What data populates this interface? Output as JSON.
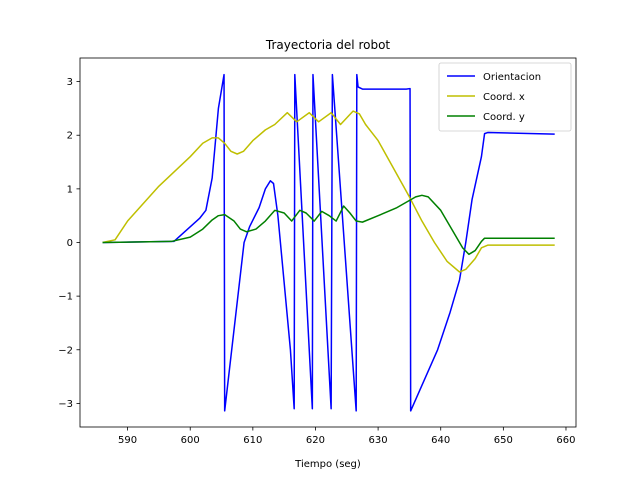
{
  "chart_data": {
    "type": "line",
    "title": "Trayectoria del robot",
    "xlabel": "Tiempo (seg)",
    "ylabel": "",
    "xlim": [
      582.4,
      661.6
    ],
    "ylim": [
      -3.44,
      3.44
    ],
    "xticks": [
      590,
      600,
      610,
      620,
      630,
      640,
      650,
      660
    ],
    "yticks": [
      -3,
      -2,
      -1,
      0,
      1,
      2,
      3
    ],
    "grid": false,
    "legend_position": "upper right",
    "series": [
      {
        "name": "Orientacion",
        "color": "#0000ff",
        "points": [
          [
            586,
            0.0
          ],
          [
            597.4,
            0.02
          ],
          [
            601.5,
            0.45
          ],
          [
            602.5,
            0.6
          ],
          [
            603.5,
            1.2
          ],
          [
            604.5,
            2.5
          ],
          [
            605.4,
            3.13
          ],
          [
            605.5,
            -3.14
          ],
          [
            608.6,
            0.0
          ],
          [
            609.5,
            0.3
          ],
          [
            611.0,
            0.65
          ],
          [
            612.0,
            1.0
          ],
          [
            612.8,
            1.15
          ],
          [
            613.3,
            1.1
          ],
          [
            614.0,
            0.5
          ],
          [
            616.0,
            -2.0
          ],
          [
            616.6,
            -3.1
          ],
          [
            616.7,
            3.13
          ],
          [
            619.5,
            -3.1
          ],
          [
            619.6,
            3.13
          ],
          [
            622.5,
            -3.1
          ],
          [
            622.7,
            3.13
          ],
          [
            626.5,
            -3.14
          ],
          [
            626.6,
            3.13
          ],
          [
            626.8,
            2.9
          ],
          [
            627.5,
            2.86
          ],
          [
            634.5,
            2.86
          ],
          [
            635.1,
            2.87
          ],
          [
            635.2,
            -3.14
          ],
          [
            639.5,
            -2.0
          ],
          [
            641.5,
            -1.3
          ],
          [
            643.0,
            -0.7
          ],
          [
            644.0,
            0.0
          ],
          [
            645.0,
            0.8
          ],
          [
            646.5,
            1.6
          ],
          [
            647.0,
            2.03
          ],
          [
            647.5,
            2.05
          ],
          [
            658.2,
            2.02
          ]
        ]
      },
      {
        "name": "Coord. x",
        "color": "#bfbf00",
        "points": [
          [
            586,
            0.0
          ],
          [
            588.0,
            0.05
          ],
          [
            590.0,
            0.4
          ],
          [
            595.0,
            1.05
          ],
          [
            600.0,
            1.6
          ],
          [
            602.0,
            1.85
          ],
          [
            603.5,
            1.95
          ],
          [
            604.5,
            1.95
          ],
          [
            605.5,
            1.85
          ],
          [
            606.5,
            1.7
          ],
          [
            607.5,
            1.65
          ],
          [
            608.5,
            1.7
          ],
          [
            610.0,
            1.9
          ],
          [
            612.0,
            2.1
          ],
          [
            613.5,
            2.2
          ],
          [
            615.5,
            2.42
          ],
          [
            617.0,
            2.25
          ],
          [
            619.0,
            2.42
          ],
          [
            620.5,
            2.25
          ],
          [
            622.5,
            2.42
          ],
          [
            624.0,
            2.2
          ],
          [
            626.0,
            2.45
          ],
          [
            627.0,
            2.4
          ],
          [
            628.0,
            2.2
          ],
          [
            630.0,
            1.9
          ],
          [
            635.0,
            0.85
          ],
          [
            637.0,
            0.4
          ],
          [
            639.0,
            0.0
          ],
          [
            641.0,
            -0.35
          ],
          [
            643.0,
            -0.55
          ],
          [
            644.0,
            -0.5
          ],
          [
            645.5,
            -0.3
          ],
          [
            646.5,
            -0.1
          ],
          [
            647.5,
            -0.05
          ],
          [
            658.2,
            -0.05
          ]
        ]
      },
      {
        "name": "Coord. y",
        "color": "#008000",
        "points": [
          [
            586,
            0.0
          ],
          [
            597.0,
            0.02
          ],
          [
            600.0,
            0.1
          ],
          [
            602.0,
            0.25
          ],
          [
            603.5,
            0.42
          ],
          [
            604.5,
            0.5
          ],
          [
            605.5,
            0.52
          ],
          [
            607.0,
            0.4
          ],
          [
            608.0,
            0.25
          ],
          [
            609.0,
            0.2
          ],
          [
            610.5,
            0.25
          ],
          [
            612.0,
            0.4
          ],
          [
            613.5,
            0.6
          ],
          [
            615.0,
            0.55
          ],
          [
            616.2,
            0.4
          ],
          [
            617.5,
            0.6
          ],
          [
            618.5,
            0.55
          ],
          [
            619.8,
            0.4
          ],
          [
            621.0,
            0.58
          ],
          [
            622.2,
            0.5
          ],
          [
            623.3,
            0.4
          ],
          [
            624.5,
            0.68
          ],
          [
            625.5,
            0.55
          ],
          [
            626.5,
            0.4
          ],
          [
            627.5,
            0.38
          ],
          [
            630.0,
            0.5
          ],
          [
            633.0,
            0.65
          ],
          [
            636.0,
            0.85
          ],
          [
            637.0,
            0.88
          ],
          [
            638.0,
            0.85
          ],
          [
            640.0,
            0.6
          ],
          [
            642.0,
            0.2
          ],
          [
            643.5,
            -0.1
          ],
          [
            644.5,
            -0.22
          ],
          [
            645.5,
            -0.15
          ],
          [
            646.5,
            0.02
          ],
          [
            647.0,
            0.08
          ],
          [
            658.2,
            0.08
          ]
        ]
      }
    ]
  }
}
